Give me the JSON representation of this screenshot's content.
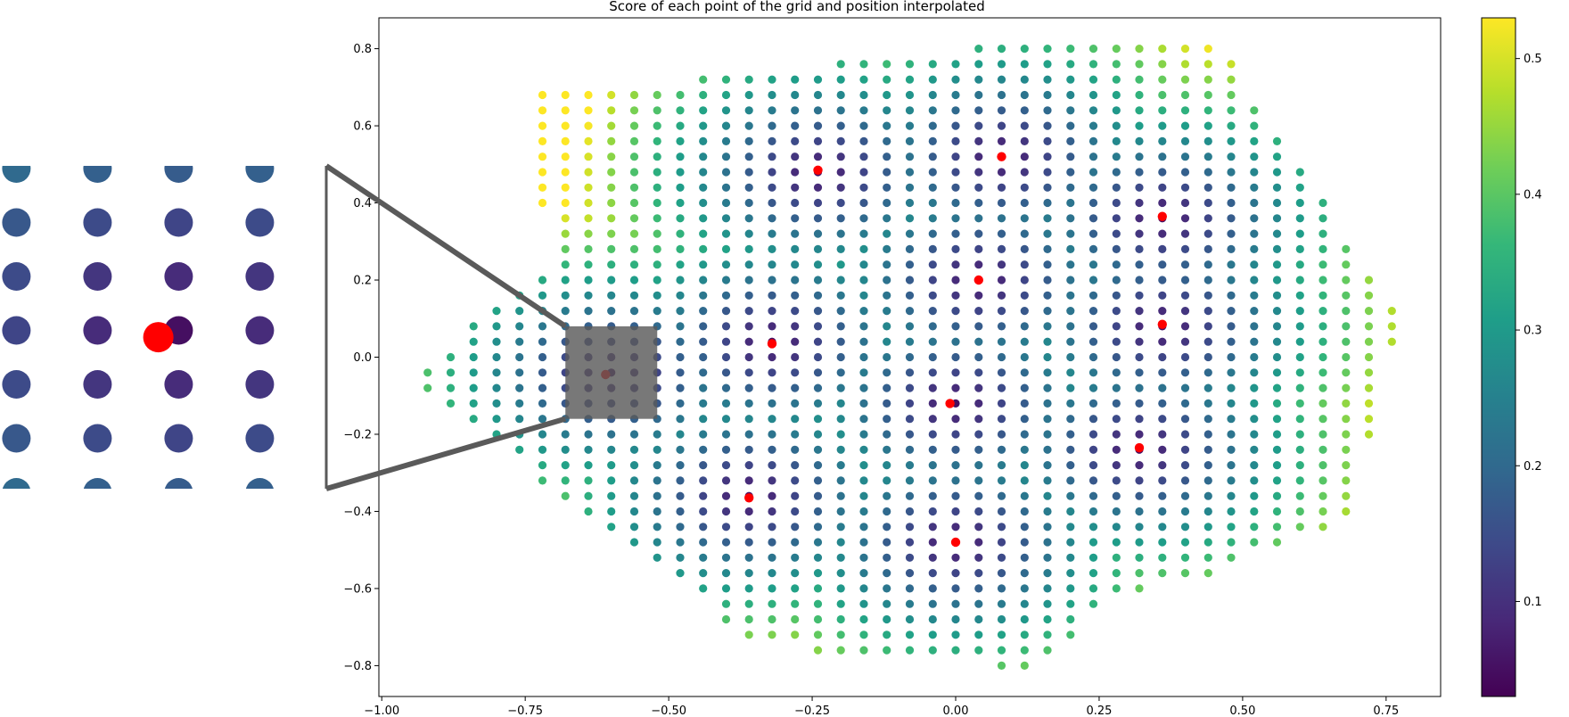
{
  "chart_data": {
    "type": "scatter",
    "title": "Score of each point of the grid and position interpolated",
    "xlabel": "",
    "ylabel": "",
    "xlim": [
      -1.005,
      0.845
    ],
    "ylim": [
      -0.88,
      0.88
    ],
    "xticks": [
      -1.0,
      -0.75,
      -0.5,
      -0.25,
      0.0,
      0.25,
      0.5,
      0.75
    ],
    "xtick_labels": [
      "−1.00",
      "−0.75",
      "−0.50",
      "−0.25",
      "0.00",
      "0.25",
      "0.50",
      "0.75"
    ],
    "yticks": [
      -0.8,
      -0.6,
      -0.4,
      -0.2,
      0.0,
      0.2,
      0.4,
      0.6,
      0.8
    ],
    "ytick_labels": [
      "−0.8",
      "−0.6",
      "−0.4",
      "−0.2",
      "0.0",
      "0.2",
      "0.4",
      "0.6",
      "0.8"
    ],
    "grid": false,
    "colormap": "viridis",
    "colorbar": {
      "range": [
        0.03,
        0.53
      ],
      "ticks": [
        0.1,
        0.2,
        0.3,
        0.4,
        0.5
      ],
      "tick_labels": [
        "0.1",
        "0.2",
        "0.3",
        "0.4",
        "0.5"
      ]
    },
    "grid_points": {
      "spacing_x": 0.04,
      "spacing_y": 0.04,
      "row_extents": [
        {
          "y": 0.8,
          "x_min": 0.04,
          "x_max": 0.44
        },
        {
          "y": 0.76,
          "x_min": -0.2,
          "x_max": 0.48
        },
        {
          "y": 0.72,
          "x_min": -0.44,
          "x_max": 0.48
        },
        {
          "y": 0.68,
          "x_min": -0.72,
          "x_max": 0.48
        },
        {
          "y": 0.64,
          "x_min": -0.72,
          "x_max": 0.52
        },
        {
          "y": 0.6,
          "x_min": -0.72,
          "x_max": 0.52
        },
        {
          "y": 0.56,
          "x_min": -0.72,
          "x_max": 0.56
        },
        {
          "y": 0.52,
          "x_min": -0.72,
          "x_max": 0.56
        },
        {
          "y": 0.48,
          "x_min": -0.72,
          "x_max": 0.6
        },
        {
          "y": 0.44,
          "x_min": -0.72,
          "x_max": 0.6
        },
        {
          "y": 0.4,
          "x_min": -0.72,
          "x_max": 0.64
        },
        {
          "y": 0.36,
          "x_min": -0.68,
          "x_max": 0.64
        },
        {
          "y": 0.32,
          "x_min": -0.68,
          "x_max": 0.64
        },
        {
          "y": 0.28,
          "x_min": -0.68,
          "x_max": 0.68
        },
        {
          "y": 0.24,
          "x_min": -0.68,
          "x_max": 0.68
        },
        {
          "y": 0.2,
          "x_min": -0.72,
          "x_max": 0.72
        },
        {
          "y": 0.16,
          "x_min": -0.76,
          "x_max": 0.72
        },
        {
          "y": 0.12,
          "x_min": -0.8,
          "x_max": 0.76
        },
        {
          "y": 0.08,
          "x_min": -0.84,
          "x_max": 0.76
        },
        {
          "y": 0.04,
          "x_min": -0.84,
          "x_max": 0.76
        },
        {
          "y": 0.0,
          "x_min": -0.88,
          "x_max": 0.72
        },
        {
          "y": -0.04,
          "x_min": -0.92,
          "x_max": 0.72
        },
        {
          "y": -0.08,
          "x_min": -0.92,
          "x_max": 0.72
        },
        {
          "y": -0.12,
          "x_min": -0.88,
          "x_max": 0.72
        },
        {
          "y": -0.16,
          "x_min": -0.84,
          "x_max": 0.72
        },
        {
          "y": -0.2,
          "x_min": -0.8,
          "x_max": 0.72
        },
        {
          "y": -0.24,
          "x_min": -0.76,
          "x_max": 0.68
        },
        {
          "y": -0.28,
          "x_min": -0.72,
          "x_max": 0.68
        },
        {
          "y": -0.32,
          "x_min": -0.72,
          "x_max": 0.68
        },
        {
          "y": -0.36,
          "x_min": -0.68,
          "x_max": 0.68
        },
        {
          "y": -0.4,
          "x_min": -0.64,
          "x_max": 0.68
        },
        {
          "y": -0.44,
          "x_min": -0.6,
          "x_max": 0.64
        },
        {
          "y": -0.48,
          "x_min": -0.56,
          "x_max": 0.56
        },
        {
          "y": -0.52,
          "x_min": -0.52,
          "x_max": 0.48
        },
        {
          "y": -0.56,
          "x_min": -0.48,
          "x_max": 0.44
        },
        {
          "y": -0.6,
          "x_min": -0.44,
          "x_max": 0.32
        },
        {
          "y": -0.64,
          "x_min": -0.4,
          "x_max": 0.24
        },
        {
          "y": -0.68,
          "x_min": -0.4,
          "x_max": 0.2
        },
        {
          "y": -0.72,
          "x_min": -0.36,
          "x_max": 0.2
        },
        {
          "y": -0.76,
          "x_min": -0.24,
          "x_max": 0.16
        },
        {
          "y": -0.8,
          "x_min": 0.08,
          "x_max": 0.12
        }
      ],
      "score_minima": [
        [
          0.08,
          0.52
        ],
        [
          -0.24,
          0.48
        ],
        [
          0.36,
          0.36
        ],
        [
          0.04,
          0.2
        ],
        [
          0.36,
          0.08
        ],
        [
          -0.32,
          0.04
        ],
        [
          -0.6,
          -0.04
        ],
        [
          0.0,
          -0.12
        ],
        [
          0.32,
          -0.24
        ],
        [
          -0.36,
          -0.36
        ],
        [
          0.0,
          -0.48
        ]
      ],
      "score_range": [
        0.03,
        0.53
      ]
    },
    "series": [
      {
        "marker": "red-dot",
        "color": "#ff0000",
        "x": [
          0.08,
          -0.24,
          0.36,
          0.04,
          0.36,
          -0.32,
          -0.61,
          -0.01,
          0.32,
          -0.36,
          0.0
        ],
        "y": [
          0.52,
          0.485,
          0.365,
          0.2,
          0.085,
          0.035,
          -0.045,
          -0.12,
          -0.235,
          -0.365,
          -0.48
        ]
      }
    ],
    "inset": {
      "zoom_region": {
        "x": [
          -0.68,
          -0.52
        ],
        "y": [
          -0.16,
          0.08
        ]
      },
      "region_color": "#5a5a5a",
      "connector_color": "#5a5a5a"
    }
  }
}
